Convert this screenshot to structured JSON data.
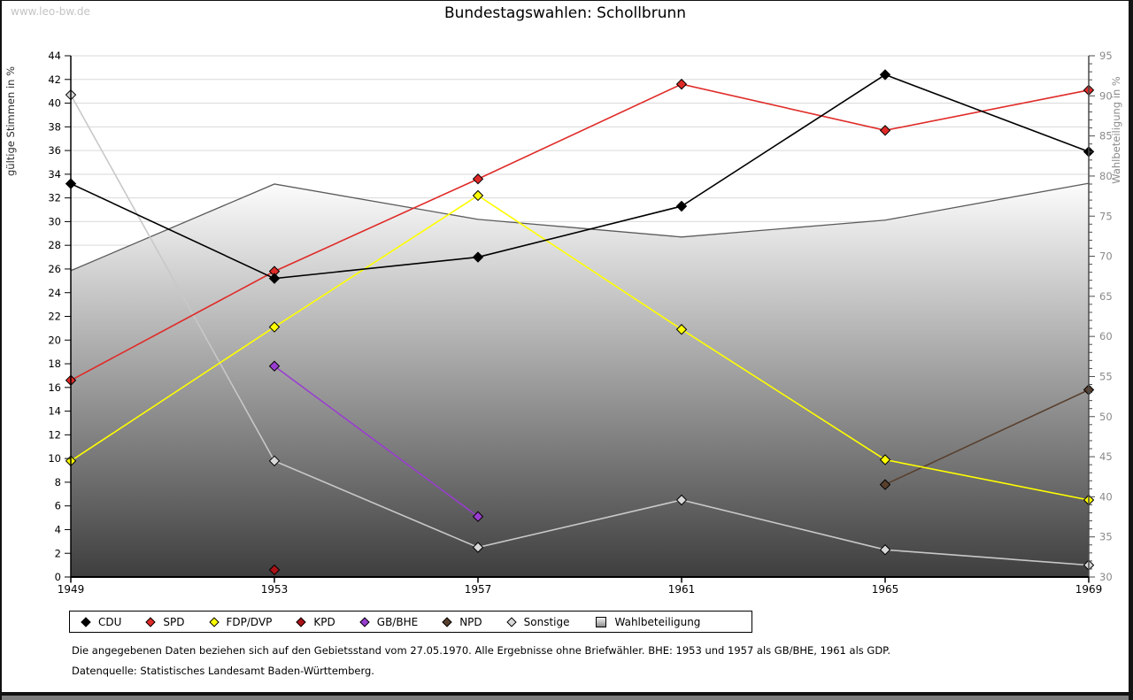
{
  "watermark": "www.leo-bw.de",
  "title": "Bundestagswahlen: Schollbrunn",
  "footer": {
    "line1": "Die angegebenen Daten beziehen sich auf den Gebietsstand vom 27.05.1970. Alle Ergebnisse ohne Briefwähler. BHE: 1953 und 1957 als GB/BHE, 1961 als GDP.",
    "line2": "Datenquelle: Statistisches Landesamt Baden-Württemberg."
  },
  "chart_data": {
    "type": "line",
    "x": [
      1949,
      1953,
      1957,
      1961,
      1965,
      1969
    ],
    "left_axis": {
      "label": "gültige Stimmen in %",
      "min": 0,
      "max": 44,
      "tick_step": 2
    },
    "right_axis": {
      "label": "Wahlbeteiligung in %",
      "min": 30,
      "max": 95,
      "tick_step": 5,
      "minor_step": 1
    },
    "grid": "horizontal",
    "legend_position": "bottom",
    "series": [
      {
        "name": "CDU",
        "color": "#000000",
        "axis": "left",
        "kind": "line",
        "values": [
          33.2,
          25.2,
          27.0,
          31.3,
          42.4,
          35.9
        ]
      },
      {
        "name": "SPD",
        "color": "#df2b28",
        "axis": "left",
        "kind": "line",
        "values": [
          16.6,
          25.8,
          33.6,
          41.6,
          37.7,
          41.1
        ]
      },
      {
        "name": "FDP/DVP",
        "color": "#ffff00",
        "axis": "left",
        "kind": "line",
        "values": [
          9.8,
          21.1,
          32.2,
          20.9,
          9.9,
          6.5
        ]
      },
      {
        "name": "KPD",
        "color": "#ab1318",
        "axis": "left",
        "kind": "line",
        "values": [
          null,
          0.6,
          null,
          null,
          null,
          null
        ]
      },
      {
        "name": "GB/BHE",
        "color": "#9a3dd1",
        "axis": "left",
        "kind": "line",
        "values": [
          null,
          17.8,
          5.1,
          null,
          null,
          null
        ]
      },
      {
        "name": "NPD",
        "color": "#59402e",
        "axis": "left",
        "kind": "line",
        "values": [
          null,
          null,
          null,
          null,
          7.8,
          15.8
        ]
      },
      {
        "name": "Sonstige",
        "color": "#c8c8c8",
        "axis": "left",
        "kind": "line",
        "marker_fill": "#d9d9d9",
        "values": [
          40.7,
          9.8,
          2.5,
          6.5,
          2.3,
          1.0
        ]
      },
      {
        "name": "Wahlbeteiligung",
        "color": "#bfbfbf",
        "axis": "right",
        "kind": "area",
        "values": [
          68.2,
          79.0,
          74.6,
          72.4,
          74.5,
          79.1
        ]
      }
    ]
  }
}
